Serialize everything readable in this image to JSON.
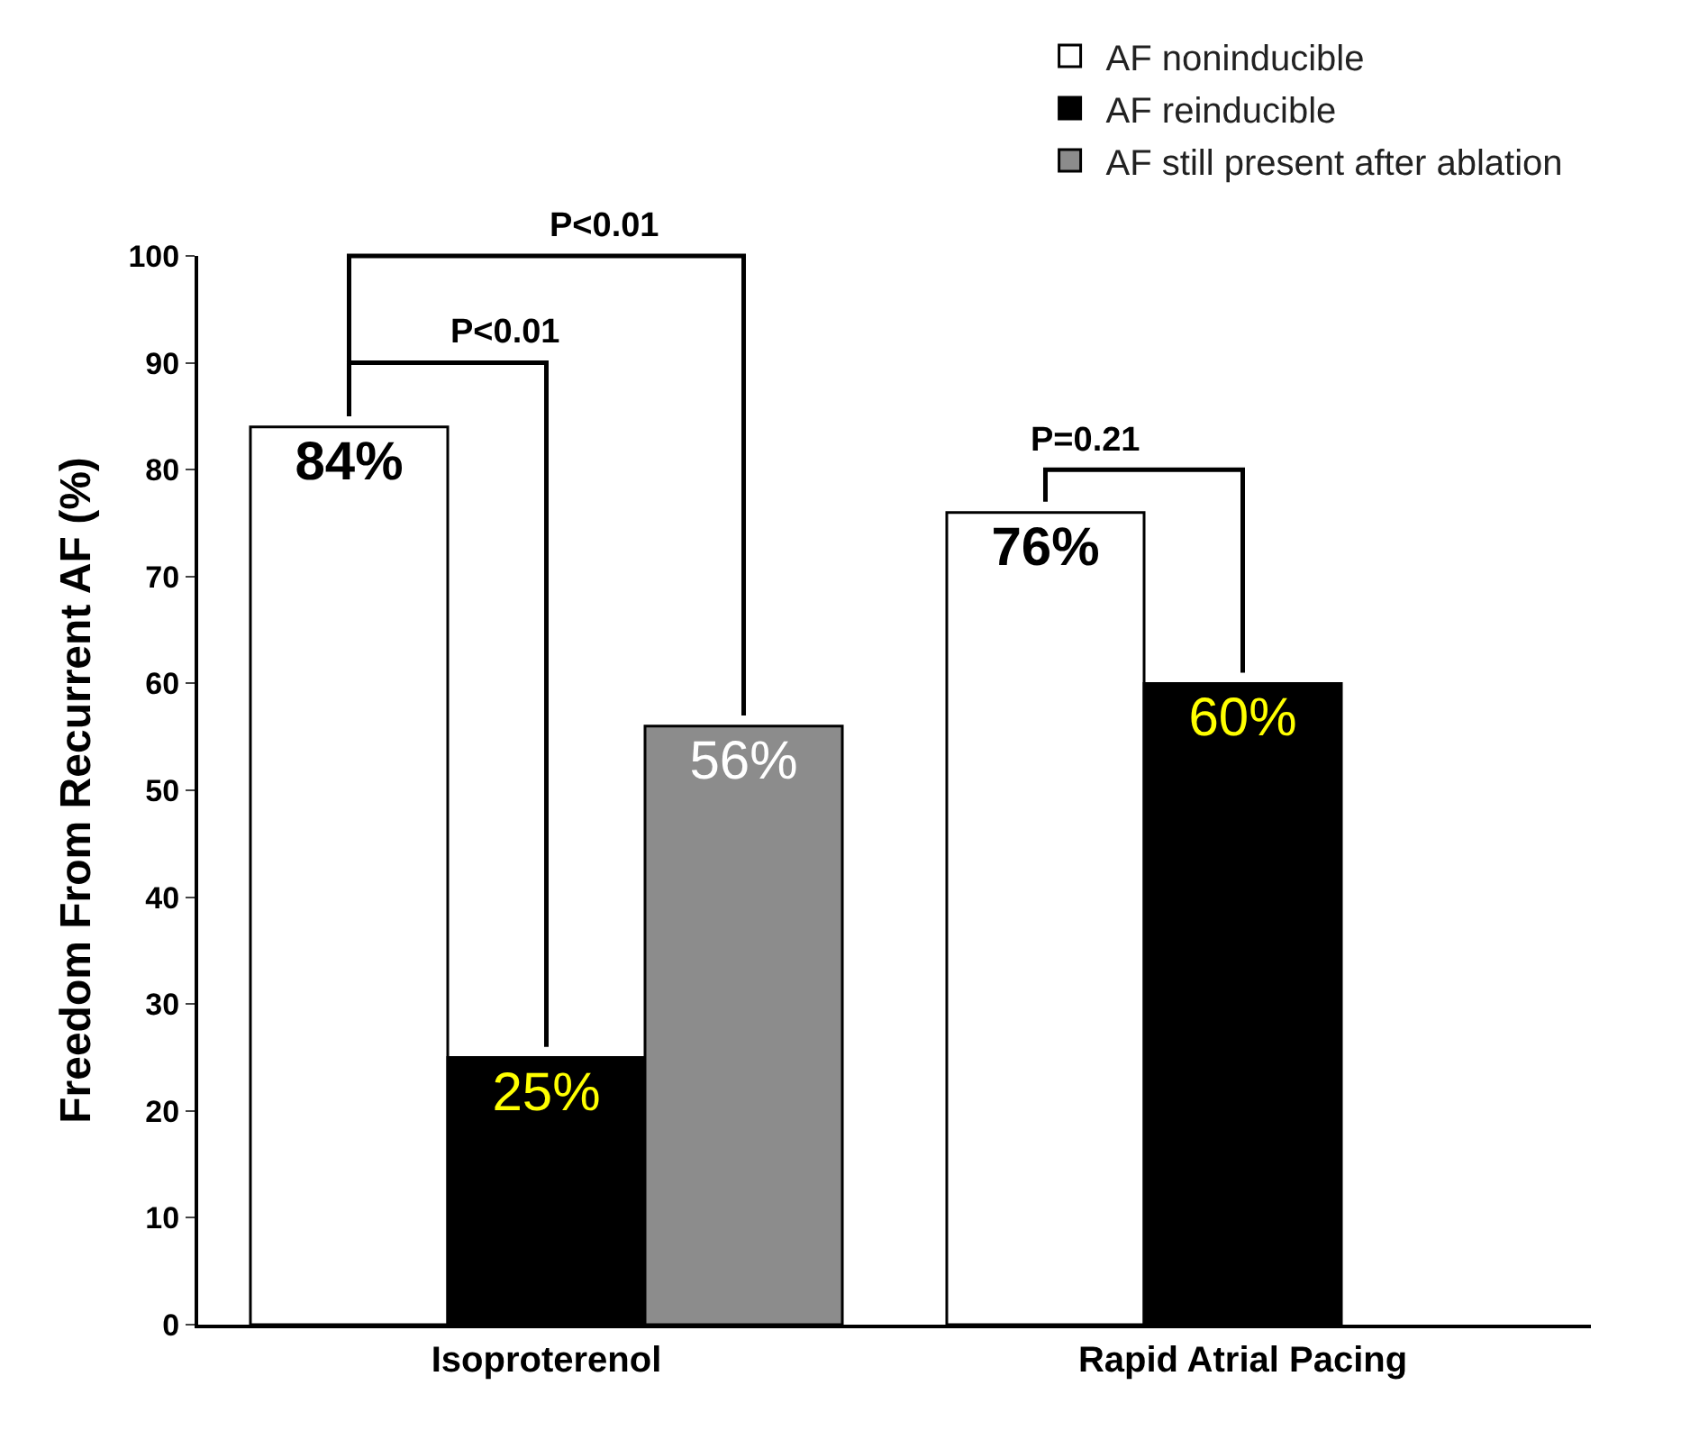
{
  "chart_data": {
    "type": "bar",
    "ylabel": "Freedom From Recurrent AF (%)",
    "categories": [
      "Isoproterenol",
      "Rapid Atrial Pacing"
    ],
    "series": [
      {
        "name": "AF noninducible",
        "color": "#ffffff",
        "values": [
          84,
          76
        ],
        "value_labels": [
          "84%",
          "76%"
        ]
      },
      {
        "name": "AF reinducible",
        "color": "#000000",
        "values": [
          25,
          60
        ],
        "value_labels": [
          "25%",
          "60%"
        ]
      },
      {
        "name": "AF still present after ablation",
        "color": "#8c8c8c",
        "values": [
          56,
          null
        ],
        "value_labels": [
          "56%",
          null
        ]
      }
    ],
    "ylim": [
      0,
      100
    ],
    "yticks": [
      0,
      10,
      20,
      30,
      40,
      50,
      60,
      70,
      80,
      90,
      100
    ],
    "grid": false,
    "legend": "top right",
    "annotations": [
      "P<0.01",
      "P<0.01",
      "P=0.21"
    ]
  }
}
